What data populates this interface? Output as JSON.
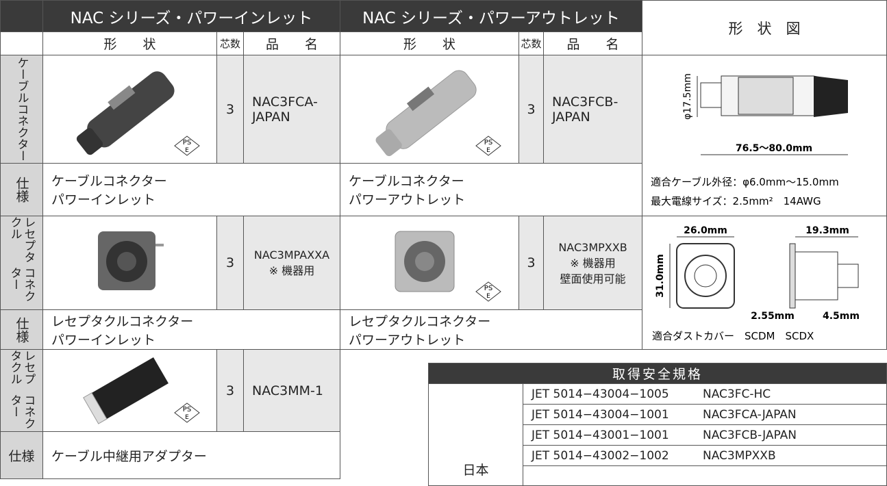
{
  "header": {
    "inlet": "NAC シリーズ・パワーインレット",
    "outlet": "NAC シリーズ・パワーアウトレット",
    "drawing": "形　状　図",
    "inlet_columns": [
      "形　　状",
      "芯数",
      "品　　名"
    ],
    "outlet_columns": [
      "形　　状",
      "芯数",
      "品　　名"
    ]
  },
  "pse_mark": {
    "top": "PS",
    "bottom": "E"
  },
  "cable": {
    "label": "ケーブルコネクター",
    "inlet": {
      "cores": "3",
      "name": [
        "NAC3FCA-",
        "JAPAN"
      ]
    },
    "outlet": {
      "cores": "3",
      "name": [
        "NAC3FCB-",
        "JAPAN"
      ]
    },
    "spec_label": "仕様",
    "inlet_spec": [
      "ケーブルコネクター",
      "パワーインレット"
    ],
    "outlet_spec": [
      "ケーブルコネクター",
      "パワーアウトレット"
    ],
    "drawing": {
      "diameter": "φ17.5mm",
      "length": "76.5〜80.0mm",
      "notes": [
        "適合ケーブル外径：φ6.0mm〜15.0mm",
        "最大電線サイズ：2.5mm²　14AWG"
      ]
    }
  },
  "receptacle": {
    "label": [
      "レセプタクル",
      "コネクター"
    ],
    "inlet": {
      "cores": "3",
      "name": [
        "NAC3MPAXXA",
        "※ 機器用"
      ]
    },
    "outlet": {
      "cores": "3",
      "name": [
        "NAC3MPXXB",
        "※ 機器用",
        "壁面使用可能"
      ]
    },
    "spec_label": "仕様",
    "inlet_spec": [
      "レセプタクルコネクター",
      "パワーインレット"
    ],
    "outlet_spec": [
      "レセプタクルコネクター",
      "パワーアウトレット"
    ],
    "drawing": {
      "width": "26.0mm",
      "height": "31.0mm",
      "depth": "19.3mm",
      "flange": "2.55mm",
      "tip": "4.5mm",
      "note": "適合ダストカバー　SCDM　SCDX"
    }
  },
  "adapter": {
    "label": [
      "レセプタクル",
      "コネクター"
    ],
    "cores": "3",
    "name": "NAC3MM-1",
    "spec_label": "仕様",
    "spec": "ケーブル中継用アダプター"
  },
  "safety": {
    "title": "取得安全規格",
    "country": "日本",
    "rows": [
      [
        "JET 5014−43004−1005",
        "NAC3FC-HC"
      ],
      [
        "JET 5014−43004−1001",
        "NAC3FCA-JAPAN"
      ],
      [
        "JET 5014−43001−1001",
        "NAC3FCB-JAPAN"
      ],
      [
        "JET 5014−43002−1002",
        "NAC3MPXXB"
      ]
    ]
  }
}
